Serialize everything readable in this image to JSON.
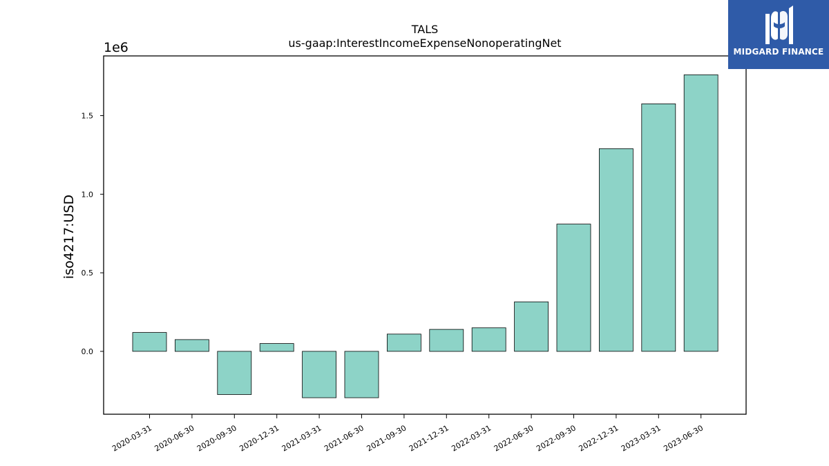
{
  "colors": {
    "bar_fill": "#8dd3c7",
    "bar_edge": "#000000",
    "axis": "#000000",
    "logo_bg": "#2f5ba8",
    "logo_fg": "#ffffff"
  },
  "logo": {
    "text": "MIDGARD FINANCE",
    "icon": "midgard-logo-icon"
  },
  "chart_data": {
    "type": "bar",
    "title": "TALS",
    "subtitle": "us-gaap:InterestIncomeExpenseNonoperatingNet",
    "xlabel": "",
    "ylabel": "iso4217:USD",
    "offset_label": "1e6",
    "ylim": [
      -0.4,
      1.88
    ],
    "yticks": [
      0.0,
      0.5,
      1.0,
      1.5
    ],
    "ytick_labels": [
      "0.0",
      "0.5",
      "1.0",
      "1.5"
    ],
    "grid": false,
    "categories": [
      "2020-03-31",
      "2020-06-30",
      "2020-09-30",
      "2020-12-31",
      "2021-03-31",
      "2021-06-30",
      "2021-09-30",
      "2021-12-31",
      "2022-03-31",
      "2022-06-30",
      "2022-09-30",
      "2022-12-31",
      "2023-03-31",
      "2023-06-30"
    ],
    "values": [
      0.12,
      0.075,
      -0.275,
      0.05,
      -0.295,
      -0.295,
      0.11,
      0.14,
      0.15,
      0.315,
      0.81,
      1.29,
      1.575,
      1.76
    ]
  }
}
